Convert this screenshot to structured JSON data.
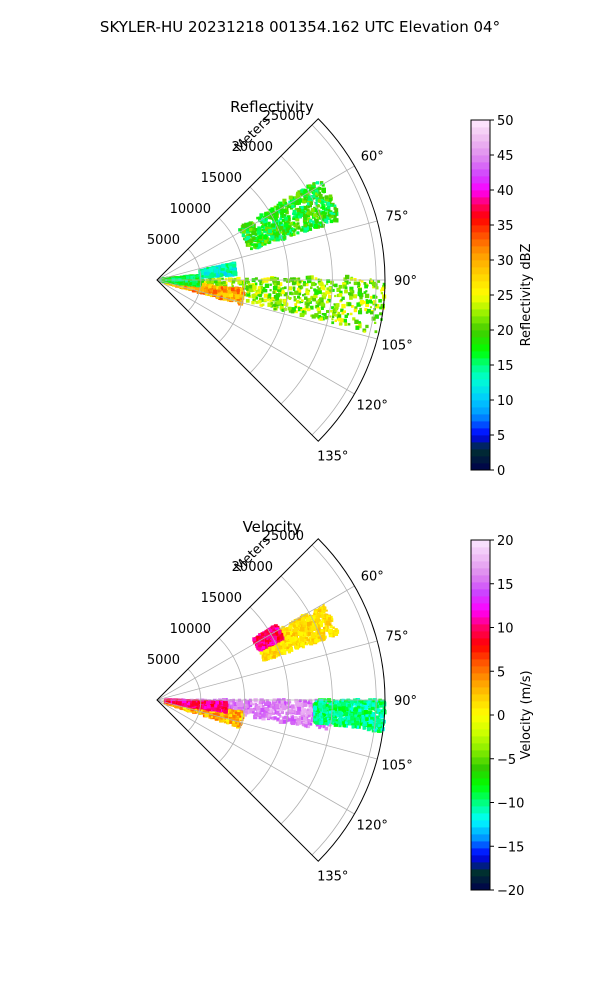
{
  "figure": {
    "title": "SKYLER-HU  20231218  001354.162 UTC Elevation 04°"
  },
  "chart_data": [
    {
      "type": "heatmap",
      "projection": "polar-sector",
      "title": "Reflectivity",
      "range_label": "Meters",
      "azimuth_range_deg": [
        45,
        135
      ],
      "range_max_m": 26000,
      "range_ticks": [
        "5000",
        "10000",
        "15000",
        "20000",
        "25000"
      ],
      "range_tick_values": [
        5000,
        10000,
        15000,
        20000,
        25000
      ],
      "azimuth_ticks": [
        "60°",
        "75°",
        "90°",
        "105°",
        "120°",
        "135°"
      ],
      "azimuth_tick_values": [
        60,
        75,
        90,
        105,
        120,
        135
      ],
      "grid": true,
      "colorbar": {
        "label": "Reflectivity dBZ",
        "min": 0,
        "max": 50,
        "ticks": [
          "0",
          "5",
          "10",
          "15",
          "20",
          "25",
          "30",
          "35",
          "40",
          "45",
          "50"
        ],
        "tick_values": [
          0,
          5,
          10,
          15,
          20,
          25,
          30,
          35,
          40,
          45,
          50
        ]
      },
      "echo_regions": [
        {
          "az": [
            58,
            72
          ],
          "range_km": [
            11,
            22
          ],
          "value": [
            14,
            22
          ]
        },
        {
          "az": [
            89,
            104
          ],
          "range_km": [
            0.5,
            26
          ],
          "value": [
            18,
            26
          ]
        },
        {
          "az": [
            96,
            106
          ],
          "range_km": [
            1,
            10
          ],
          "value": [
            26,
            34
          ]
        },
        {
          "az": [
            84,
            98
          ],
          "range_km": [
            0.5,
            5
          ],
          "value": [
            14,
            20
          ]
        },
        {
          "az": [
            78,
            86
          ],
          "range_km": [
            5,
            9
          ],
          "value": [
            10,
            16
          ]
        }
      ]
    },
    {
      "type": "heatmap",
      "projection": "polar-sector",
      "title": "Velocity",
      "range_label": "Meters",
      "azimuth_range_deg": [
        45,
        135
      ],
      "range_max_m": 26000,
      "range_ticks": [
        "5000",
        "10000",
        "15000",
        "20000",
        "25000"
      ],
      "range_tick_values": [
        5000,
        10000,
        15000,
        20000,
        25000
      ],
      "azimuth_ticks": [
        "60°",
        "75°",
        "90°",
        "105°",
        "120°",
        "135°"
      ],
      "azimuth_tick_values": [
        60,
        75,
        90,
        105,
        120,
        135
      ],
      "grid": true,
      "colorbar": {
        "label": "Velocity (m/s)",
        "min": -20,
        "max": 20,
        "ticks": [
          "−20",
          "−15",
          "−10",
          "−5",
          "0",
          "5",
          "10",
          "15",
          "20"
        ],
        "tick_values": [
          -20,
          -15,
          -10,
          -5,
          0,
          5,
          10,
          15,
          20
        ]
      },
      "echo_regions": [
        {
          "az": [
            60,
            70
          ],
          "range_km": [
            13,
            22
          ],
          "value": [
            0,
            3
          ]
        },
        {
          "az": [
            58,
            64
          ],
          "range_km": [
            13,
            16
          ],
          "value": [
            8,
            12
          ]
        },
        {
          "az": [
            90,
            100
          ],
          "range_km": [
            1,
            20
          ],
          "value": [
            14,
            18
          ]
        },
        {
          "az": [
            90,
            98
          ],
          "range_km": [
            18,
            26
          ],
          "value": [
            -12,
            -8
          ]
        },
        {
          "az": [
            98,
            108
          ],
          "range_km": [
            1,
            10
          ],
          "value": [
            0,
            6
          ]
        },
        {
          "az": [
            92,
            100
          ],
          "range_km": [
            1,
            8
          ],
          "value": [
            8,
            12
          ]
        }
      ]
    }
  ]
}
